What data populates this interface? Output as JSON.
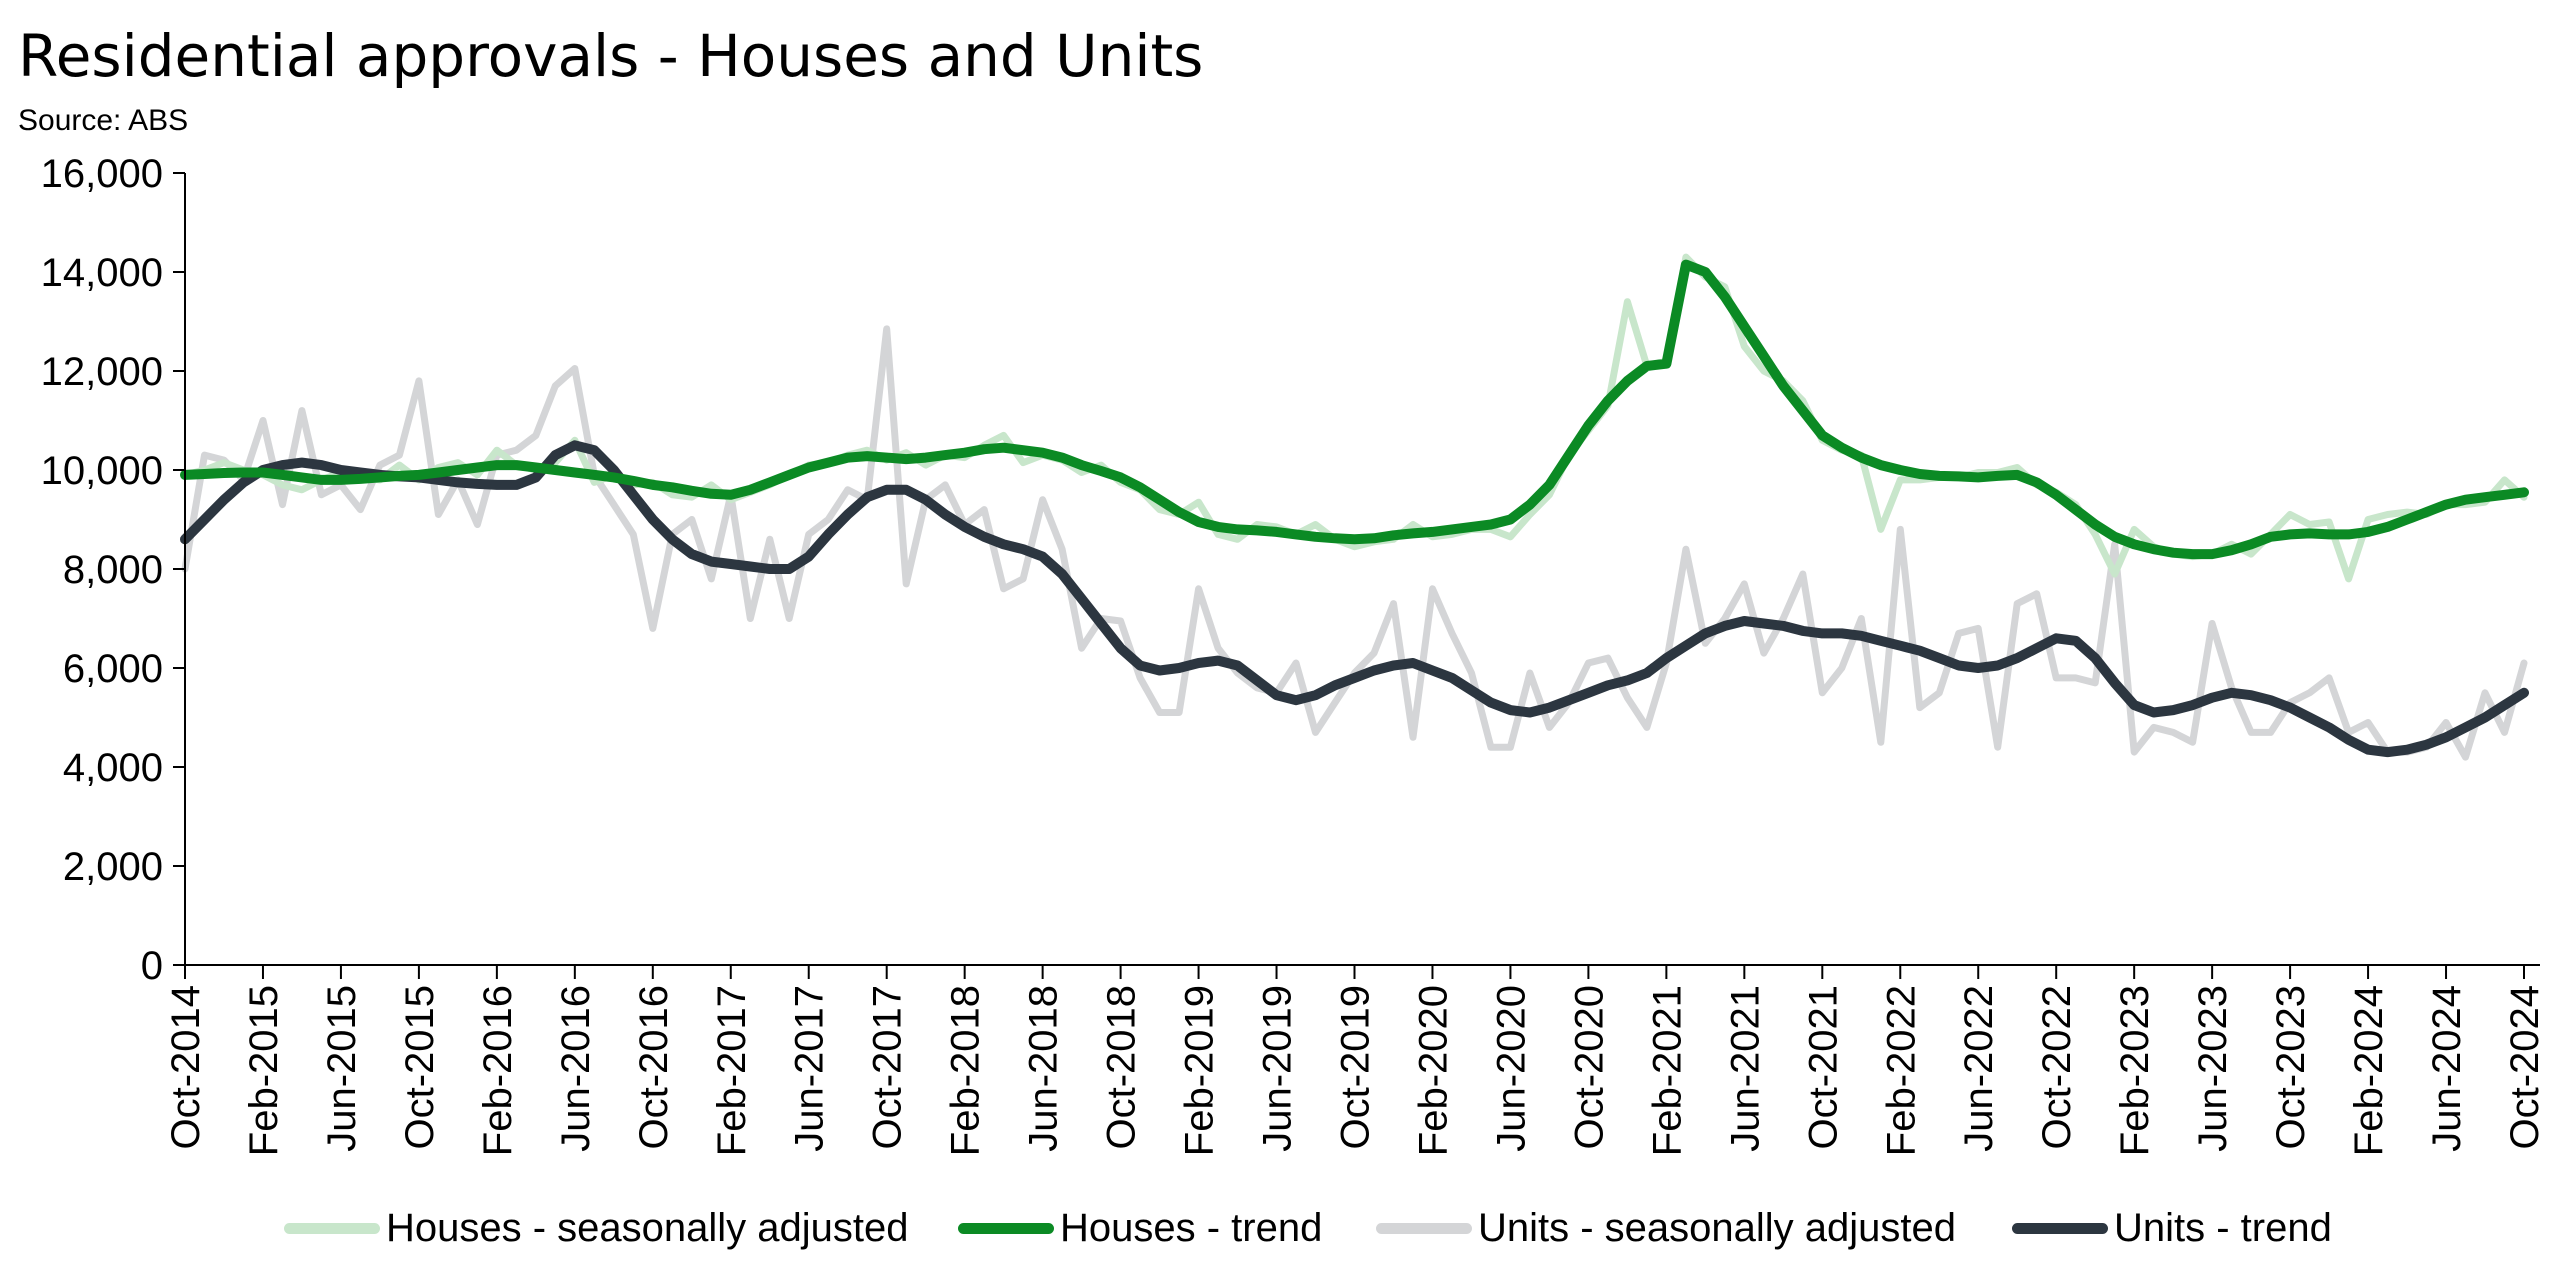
{
  "chart_data": {
    "type": "line",
    "title": "Residential approvals - Houses and Units",
    "subtitle": "Source: ABS",
    "xlabel": "",
    "ylabel": "",
    "ylim": [
      0,
      16000
    ],
    "yticks": [
      "0",
      "2,000",
      "4,000",
      "6,000",
      "8,000",
      "10,000",
      "12,000",
      "14,000",
      "16,000"
    ],
    "x_start": "Oct-2014",
    "x_end": "Oct-2024",
    "x_frequency": "monthly",
    "xticks": [
      "Oct-2014",
      "Feb-2015",
      "Jun-2015",
      "Oct-2015",
      "Feb-2016",
      "Jun-2016",
      "Oct-2016",
      "Feb-2017",
      "Jun-2017",
      "Oct-2017",
      "Feb-2018",
      "Jun-2018",
      "Oct-2018",
      "Feb-2019",
      "Jun-2019",
      "Oct-2019",
      "Feb-2020",
      "Jun-2020",
      "Oct-2020",
      "Feb-2021",
      "Jun-2021",
      "Oct-2021",
      "Feb-2022",
      "Jun-2022",
      "Oct-2022",
      "Feb-2023",
      "Jun-2023",
      "Oct-2023",
      "Feb-2024",
      "Jun-2024",
      "Oct-2024"
    ],
    "grid": false,
    "legend_position": "bottom",
    "series": [
      {
        "name": "Houses - seasonally adjusted",
        "color": "#c8e6cb",
        "values": [
          9900,
          10000,
          10150,
          10000,
          9900,
          9700,
          9600,
          9800,
          9950,
          9850,
          9800,
          10100,
          9800,
          10050,
          10150,
          9900,
          10400,
          10100,
          10000,
          10150,
          10600,
          9750,
          9900,
          9700,
          9750,
          9500,
          9450,
          9700,
          9400,
          9550,
          9700,
          9900,
          10100,
          10150,
          10300,
          10400,
          10200,
          10350,
          10100,
          10300,
          10250,
          10500,
          10700,
          10150,
          10300,
          10200,
          9950,
          10100,
          9750,
          9600,
          9200,
          9100,
          9350,
          8700,
          8600,
          8900,
          8850,
          8700,
          8900,
          8600,
          8450,
          8550,
          8600,
          8900,
          8650,
          8700,
          8800,
          8800,
          8650,
          9100,
          9500,
          10300,
          10800,
          11300,
          13400,
          12100,
          12200,
          14300,
          13900,
          13700,
          12500,
          12000,
          11800,
          11400,
          10600,
          10400,
          10300,
          8800,
          9800,
          9800,
          9850,
          9850,
          9950,
          9950,
          10050,
          9700,
          9550,
          9300,
          8700,
          7900,
          8800,
          8450,
          8300,
          8250,
          8300,
          8500,
          8300,
          8700,
          9100,
          8900,
          8950,
          7800,
          9000,
          9100,
          9150,
          9100,
          9300,
          9300,
          9350,
          9800,
          9450
        ]
      },
      {
        "name": "Houses - trend",
        "color": "#0b8a24",
        "values": [
          9900,
          9920,
          9940,
          9950,
          9950,
          9900,
          9850,
          9800,
          9800,
          9820,
          9850,
          9880,
          9900,
          9950,
          10000,
          10050,
          10100,
          10100,
          10050,
          10000,
          9950,
          9900,
          9850,
          9780,
          9700,
          9650,
          9580,
          9520,
          9500,
          9600,
          9750,
          9900,
          10050,
          10150,
          10250,
          10280,
          10250,
          10220,
          10250,
          10300,
          10350,
          10420,
          10450,
          10400,
          10350,
          10250,
          10100,
          9980,
          9850,
          9650,
          9400,
          9150,
          8950,
          8850,
          8800,
          8780,
          8750,
          8700,
          8650,
          8620,
          8600,
          8620,
          8680,
          8720,
          8750,
          8800,
          8850,
          8900,
          9000,
          9300,
          9700,
          10300,
          10900,
          11400,
          11800,
          12100,
          12150,
          14150,
          14000,
          13500,
          12900,
          12300,
          11700,
          11200,
          10700,
          10450,
          10250,
          10100,
          10000,
          9920,
          9880,
          9870,
          9850,
          9880,
          9900,
          9750,
          9500,
          9200,
          8900,
          8650,
          8500,
          8400,
          8330,
          8300,
          8300,
          8380,
          8500,
          8650,
          8700,
          8720,
          8700,
          8700,
          8750,
          8850,
          9000,
          9150,
          9300,
          9400,
          9450,
          9500,
          9550
        ]
      },
      {
        "name": "Units - seasonally adjusted",
        "color": "#d4d5d7",
        "values": [
          8000,
          10300,
          10200,
          9800,
          11000,
          9300,
          11200,
          9500,
          9700,
          9200,
          10100,
          10300,
          11800,
          9100,
          9800,
          8900,
          10300,
          10400,
          10700,
          11700,
          12050,
          9900,
          9300,
          8700,
          6800,
          8700,
          9000,
          7800,
          9500,
          7000,
          8600,
          7000,
          8700,
          9000,
          9600,
          9400,
          12850,
          7700,
          9400,
          9700,
          8900,
          9200,
          7600,
          7800,
          9400,
          8400,
          6400,
          7000,
          6950,
          5800,
          5100,
          5100,
          7600,
          6400,
          5900,
          5600,
          5500,
          6100,
          4700,
          5300,
          5900,
          6300,
          7300,
          4600,
          7600,
          6700,
          5900,
          4400,
          4400,
          5900,
          4800,
          5300,
          6100,
          6200,
          5400,
          4800,
          6100,
          8400,
          6500,
          7000,
          7700,
          6300,
          7000,
          7900,
          5500,
          6000,
          7000,
          4500,
          8800,
          5200,
          5500,
          6700,
          6800,
          4400,
          7300,
          7500,
          5800,
          5800,
          5700,
          8500,
          4300,
          4800,
          4700,
          4500,
          6900,
          5600,
          4700,
          4700,
          5300,
          5500,
          5800,
          4700,
          4900,
          4300,
          4300,
          4400,
          4900,
          4200,
          5500,
          4700,
          6100
        ]
      },
      {
        "name": "Units - trend",
        "color": "#2c3640",
        "values": [
          8600,
          9000,
          9400,
          9750,
          10000,
          10100,
          10150,
          10100,
          10000,
          9950,
          9900,
          9870,
          9850,
          9800,
          9750,
          9720,
          9700,
          9700,
          9850,
          10300,
          10500,
          10400,
          10000,
          9500,
          9000,
          8600,
          8300,
          8150,
          8100,
          8050,
          8000,
          8000,
          8250,
          8700,
          9100,
          9450,
          9600,
          9600,
          9400,
          9100,
          8850,
          8650,
          8500,
          8400,
          8250,
          7900,
          7400,
          6900,
          6400,
          6050,
          5950,
          6000,
          6100,
          6150,
          6050,
          5750,
          5450,
          5350,
          5450,
          5650,
          5800,
          5950,
          6050,
          6100,
          5950,
          5800,
          5550,
          5300,
          5150,
          5100,
          5200,
          5350,
          5500,
          5650,
          5750,
          5900,
          6200,
          6450,
          6700,
          6850,
          6950,
          6900,
          6850,
          6750,
          6700,
          6700,
          6650,
          6550,
          6450,
          6350,
          6200,
          6050,
          6000,
          6050,
          6200,
          6400,
          6600,
          6550,
          6200,
          5700,
          5250,
          5100,
          5150,
          5250,
          5400,
          5500,
          5450,
          5350,
          5200,
          5000,
          4800,
          4550,
          4350,
          4300,
          4350,
          4450,
          4600,
          4800,
          5000,
          5250,
          5500
        ]
      }
    ]
  }
}
